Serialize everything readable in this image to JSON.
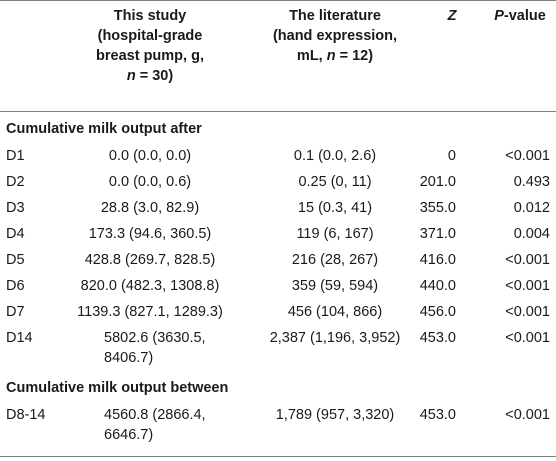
{
  "header": {
    "study_line1": "This study",
    "study_line2": "(hospital-grade",
    "study_line3": "breast pump, g,",
    "study_n_var": "n",
    "study_n_rest": " = 30)",
    "lit_line1": "The literature",
    "lit_line2": "(hand expression,",
    "lit_line3_pre": "mL, ",
    "lit_n_var": "n",
    "lit_n_rest": " = 12)",
    "z": "Z",
    "p_var": "P",
    "p_rest": "-value"
  },
  "sections": {
    "after": "Cumulative milk output after",
    "between": "Cumulative milk output between"
  },
  "rows_after": [
    {
      "label": "D1",
      "study": "0.0 (0.0, 0.0)",
      "lit": "0.1 (0.0, 2.6)",
      "z": "0",
      "p": "<0.001"
    },
    {
      "label": "D2",
      "study": "0.0 (0.0, 0.6)",
      "lit": "0.25 (0, 11)",
      "z": "201.0",
      "p": "0.493"
    },
    {
      "label": "D3",
      "study": "28.8 (3.0, 82.9)",
      "lit": "15 (0.3, 41)",
      "z": "355.0",
      "p": "0.012"
    },
    {
      "label": "D4",
      "study": "173.3 (94.6, 360.5)",
      "lit": "119 (6, 167)",
      "z": "371.0",
      "p": "0.004"
    },
    {
      "label": "D5",
      "study": "428.8 (269.7, 828.5)",
      "lit": "216 (28, 267)",
      "z": "416.0",
      "p": "<0.001"
    },
    {
      "label": "D6",
      "study": "820.0 (482.3, 1308.8)",
      "lit": "359 (59, 594)",
      "z": "440.0",
      "p": "<0.001"
    },
    {
      "label": "D7",
      "study": "1139.3 (827.1, 1289.3)",
      "lit": "456 (104, 866)",
      "z": "456.0",
      "p": "<0.001"
    },
    {
      "label": "D14",
      "study_l1": "5802.6 (3630.5,",
      "study_l2": "8406.7)",
      "lit": "2,387 (1,196, 3,952)",
      "z": "453.0",
      "p": "<0.001"
    }
  ],
  "rows_between": [
    {
      "label": "D8-14",
      "study_l1": "4560.8 (2866.4,",
      "study_l2": "6646.7)",
      "lit": "1,789 (957, 3,320)",
      "z": "453.0",
      "p": "<0.001"
    }
  ]
}
